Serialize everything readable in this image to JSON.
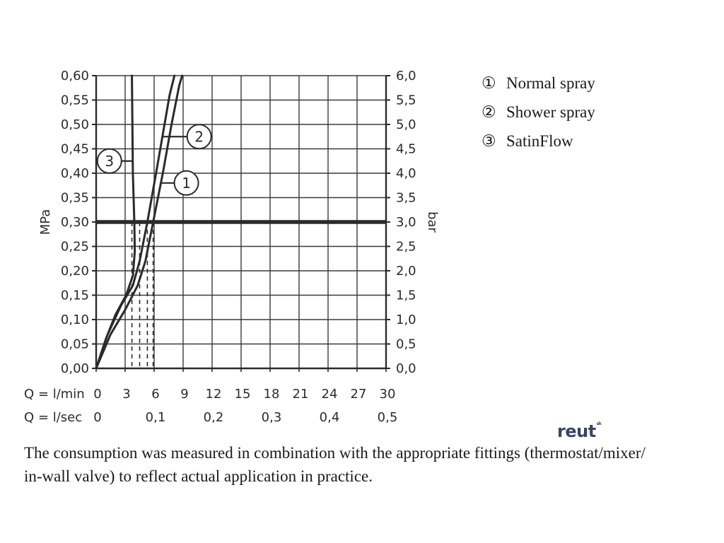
{
  "chart_data": {
    "type": "line",
    "y_left": {
      "label": "MPa",
      "ticks": [
        "0,00",
        "0,05",
        "0,10",
        "0,15",
        "0,20",
        "0,25",
        "0,30",
        "0,35",
        "0,40",
        "0,45",
        "0,50",
        "0,55",
        "0,60"
      ],
      "range": [
        0,
        0.6
      ]
    },
    "y_right": {
      "label": "bar",
      "ticks": [
        "0,0",
        "0,5",
        "1,0",
        "1,5",
        "2,0",
        "2,5",
        "3,0",
        "3,5",
        "4,0",
        "4,5",
        "5,0",
        "5,5",
        "6,0"
      ],
      "range": [
        0,
        6
      ]
    },
    "x_flow_min": {
      "label": "Q = l/min",
      "ticks": [
        "0",
        "3",
        "6",
        "9",
        "12",
        "15",
        "18",
        "21",
        "24",
        "27",
        "30"
      ],
      "range": [
        0,
        30
      ]
    },
    "x_flow_sec": {
      "label": "Q = l/sec",
      "ticks": [
        {
          "value": 0,
          "text": "0"
        },
        {
          "value": 0.1,
          "text": "0,1"
        },
        {
          "value": 0.2,
          "text": "0,2"
        },
        {
          "value": 0.3,
          "text": "0,3"
        },
        {
          "value": 0.4,
          "text": "0,4"
        },
        {
          "value": 0.5,
          "text": "0,5"
        }
      ]
    },
    "reference_pressure_mpa": 0.3,
    "series": [
      {
        "name": "Normal spray",
        "marker": "1",
        "points": [
          [
            0,
            0
          ],
          [
            1.5,
            0.07
          ],
          [
            3,
            0.12
          ],
          [
            4.3,
            0.17
          ],
          [
            5.1,
            0.22
          ],
          [
            5.9,
            0.3
          ],
          [
            6.9,
            0.4
          ],
          [
            7.8,
            0.5
          ],
          [
            8.6,
            0.58
          ],
          [
            8.9,
            0.6
          ]
        ]
      },
      {
        "name": "Shower spray",
        "marker": "2",
        "points": [
          [
            0,
            0
          ],
          [
            1.2,
            0.07
          ],
          [
            2.6,
            0.13
          ],
          [
            3.8,
            0.17
          ],
          [
            4.5,
            0.22
          ],
          [
            5.3,
            0.3
          ],
          [
            6.2,
            0.4
          ],
          [
            6.9,
            0.48
          ],
          [
            7.6,
            0.56
          ],
          [
            8.1,
            0.6
          ]
        ]
      },
      {
        "name": "SatinFlow",
        "marker": "3",
        "points": [
          [
            0,
            0
          ],
          [
            1.0,
            0.06
          ],
          [
            2.0,
            0.11
          ],
          [
            3.1,
            0.15
          ],
          [
            3.8,
            0.19
          ],
          [
            4.0,
            0.24
          ],
          [
            3.95,
            0.3
          ],
          [
            3.8,
            0.4
          ],
          [
            3.75,
            0.5
          ],
          [
            3.7,
            0.6
          ]
        ]
      }
    ],
    "drop_lines_lpm": [
      3.7,
      4.5,
      5.3,
      5.9
    ]
  },
  "legend": [
    {
      "symbol": "①",
      "label": "Normal spray"
    },
    {
      "symbol": "②",
      "label": "Shower spray"
    },
    {
      "symbol": "③",
      "label": "SatinFlow"
    }
  ],
  "caption": {
    "line1": "The consumption was measured in combination with the appropriate fittings (thermostat/mixer/",
    "line2": "in-wall valve) to reflect actual application in practice."
  },
  "logo": {
    "text": "reut",
    "superscript": "sk"
  }
}
